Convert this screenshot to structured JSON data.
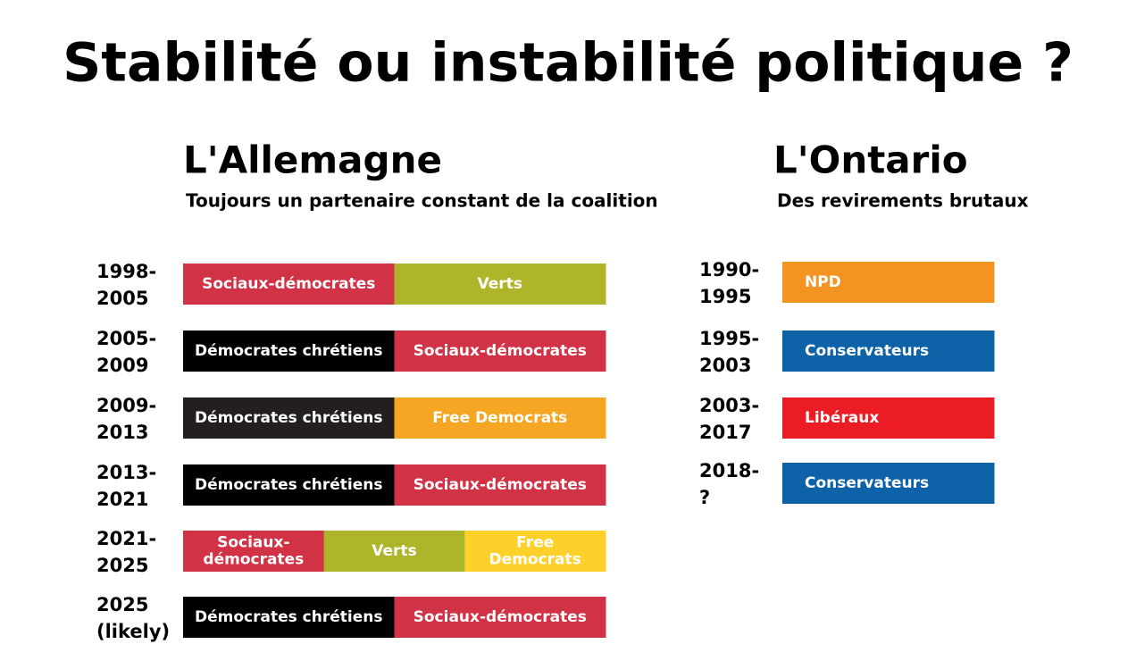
{
  "title": "Stabilité ou instabilité politique ?",
  "panels": [
    {
      "heading": "L'Allemagne",
      "subtitle": "Toujours un partenaire constant de la coalition",
      "rows": [
        {
          "period": [
            "1998-",
            "2005"
          ],
          "segments": [
            {
              "label": [
                "Sociaux-démocrates"
              ],
              "color": "#d13245"
            },
            {
              "label": [
                "Verts"
              ],
              "color": "#afb52b"
            }
          ]
        },
        {
          "period": [
            "2005-",
            "2009"
          ],
          "segments": [
            {
              "label": [
                "Démocrates chrétiens"
              ],
              "color": "#000000"
            },
            {
              "label": [
                "Sociaux-démocrates"
              ],
              "color": "#d13245"
            }
          ]
        },
        {
          "period": [
            "2009-",
            "2013"
          ],
          "segments": [
            {
              "label": [
                "Démocrates chrétiens"
              ],
              "color": "#231f20"
            },
            {
              "label": [
                "Free Democrats"
              ],
              "color": "#f5a623"
            }
          ]
        },
        {
          "period": [
            "2013-",
            "2021"
          ],
          "segments": [
            {
              "label": [
                "Démocrates chrétiens"
              ],
              "color": "#000000"
            },
            {
              "label": [
                "Sociaux-démocrates"
              ],
              "color": "#d13245"
            }
          ]
        },
        {
          "period": [
            "2021-",
            "2025"
          ],
          "segments": [
            {
              "label": [
                "Sociaux-",
                "démocrates"
              ],
              "color": "#d13245"
            },
            {
              "label": [
                "Verts"
              ],
              "color": "#afb52b"
            },
            {
              "label": [
                "Free",
                "Democrats"
              ],
              "color": "#fdd02a"
            }
          ]
        },
        {
          "period": [
            "2025",
            "(likely)"
          ],
          "segments": [
            {
              "label": [
                "Démocrates chrétiens"
              ],
              "color": "#000000"
            },
            {
              "label": [
                "Sociaux-démocrates"
              ],
              "color": "#d13245"
            }
          ]
        }
      ]
    },
    {
      "heading": "L'Ontario",
      "subtitle": "Des revirements brutaux",
      "rows": [
        {
          "period": [
            "1990-",
            "1995"
          ],
          "segments": [
            {
              "label": [
                "NPD"
              ],
              "color": "#f39322"
            }
          ]
        },
        {
          "period": [
            "1995-",
            "2003"
          ],
          "segments": [
            {
              "label": [
                "Conservateurs"
              ],
              "color": "#0d62a8"
            }
          ]
        },
        {
          "period": [
            "2003-",
            "2017"
          ],
          "segments": [
            {
              "label": [
                "Libéraux"
              ],
              "color": "#eb1c24"
            }
          ]
        },
        {
          "period": [
            "2018-",
            "?"
          ],
          "segments": [
            {
              "label": [
                "Conservateurs"
              ],
              "color": "#0d62a8"
            }
          ]
        }
      ]
    }
  ]
}
